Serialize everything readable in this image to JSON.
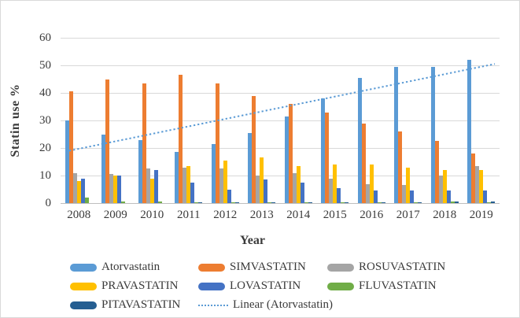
{
  "y_axis": {
    "title": "Statin use %",
    "tick_labels": [
      "0",
      "10",
      "20",
      "30",
      "40",
      "50",
      "60"
    ]
  },
  "x_axis": {
    "title": "Year"
  },
  "chart_data": {
    "type": "bar",
    "title": "",
    "xlabel": "Year",
    "ylabel": "Statin use %",
    "ylim": [
      0,
      60
    ],
    "ytick_step": 10,
    "grid": "horizontal",
    "legend_position": "bottom",
    "categories": [
      "2008",
      "2009",
      "2010",
      "2011",
      "2012",
      "2013",
      "2014",
      "2015",
      "2016",
      "2017",
      "2018",
      "2019"
    ],
    "series": [
      {
        "name": "Atorvastatin",
        "color": "#5B9BD5",
        "values": [
          30,
          25,
          23,
          18.5,
          21.5,
          25.5,
          31.5,
          38,
          45.5,
          49.5,
          49.5,
          52
        ]
      },
      {
        "name": "SIMVASTATIN",
        "color": "#ED7D31",
        "values": [
          40.5,
          45,
          43.5,
          46.5,
          43.5,
          39,
          36,
          33,
          29,
          26,
          22.5,
          18
        ]
      },
      {
        "name": "ROSUVASTATIN",
        "color": "#A5A5A5",
        "values": [
          11,
          10.5,
          12.5,
          13,
          12.5,
          10,
          11,
          9,
          7,
          6.5,
          10,
          13.5
        ]
      },
      {
        "name": "PRAVASTATIN",
        "color": "#FFC000",
        "values": [
          8,
          10,
          9,
          13.5,
          15.5,
          16.5,
          13.5,
          14,
          14,
          13,
          12,
          12
        ]
      },
      {
        "name": "LOVASTATIN",
        "color": "#4472C4",
        "values": [
          9,
          10,
          12,
          7.5,
          5,
          8.5,
          7.5,
          5.5,
          4.5,
          4.5,
          4.5,
          4.5
        ]
      },
      {
        "name": "FLUVASTATIN",
        "color": "#70AD47",
        "values": [
          2,
          0.5,
          0.5,
          0.3,
          0.3,
          0.3,
          0.3,
          0.3,
          0.3,
          0.3,
          0.5,
          0.3
        ]
      },
      {
        "name": "PITAVASTATIN",
        "color": "#255E91",
        "values": [
          0,
          0,
          0,
          0.2,
          0.2,
          0.3,
          0.3,
          0.3,
          0.3,
          0.3,
          0.5,
          0.5
        ]
      }
    ],
    "trendline": {
      "name": "Linear (Atorvastatin)",
      "color": "#5B9BD5",
      "style": "dotted",
      "y_start": 19,
      "y_end": 50.5
    }
  },
  "legend": {
    "items": [
      {
        "label": "Atorvastatin",
        "color": "#5B9BD5",
        "marker": "bar"
      },
      {
        "label": "SIMVASTATIN",
        "color": "#ED7D31",
        "marker": "bar"
      },
      {
        "label": "ROSUVASTATIN",
        "color": "#A5A5A5",
        "marker": "bar"
      },
      {
        "label": "PRAVASTATIN",
        "color": "#FFC000",
        "marker": "bar"
      },
      {
        "label": "LOVASTATIN",
        "color": "#4472C4",
        "marker": "bar"
      },
      {
        "label": "FLUVASTATIN",
        "color": "#70AD47",
        "marker": "bar"
      },
      {
        "label": "PITAVASTATIN",
        "color": "#255E91",
        "marker": "bar"
      },
      {
        "label": "Linear (Atorvastatin)",
        "color": "#5B9BD5",
        "marker": "dotted-line"
      }
    ]
  },
  "colors": {
    "background": "#FFFFFF",
    "frame_border": "#D9D9D9",
    "gridline": "#D9D9D9",
    "axis_line": "#BFBFBF",
    "text": "#3A3A3A"
  }
}
